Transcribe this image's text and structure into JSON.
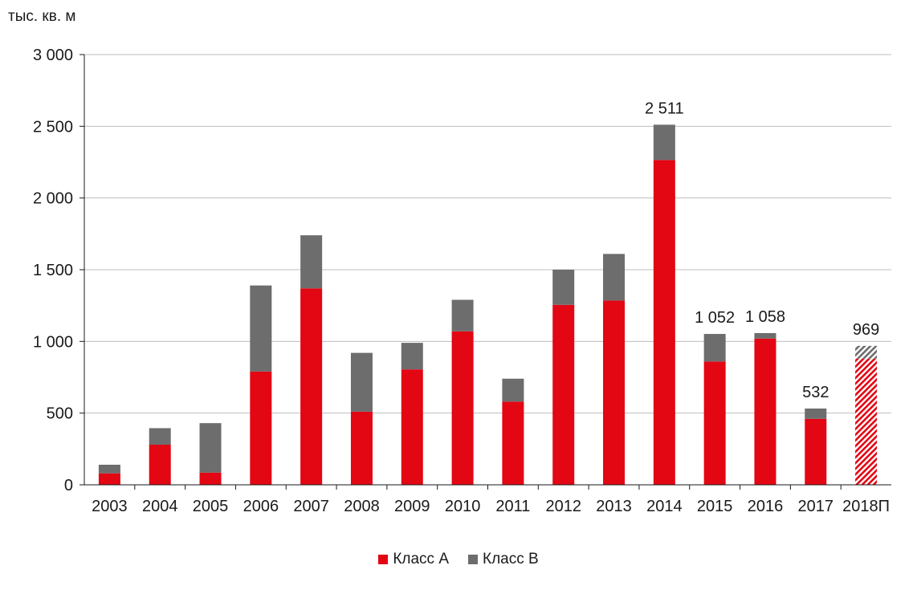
{
  "chart_data": {
    "type": "bar",
    "stacked": true,
    "unit_label": "тыс. кв. м",
    "categories": [
      "2003",
      "2004",
      "2005",
      "2006",
      "2007",
      "2008",
      "2009",
      "2010",
      "2011",
      "2012",
      "2013",
      "2014",
      "2015",
      "2016",
      "2017",
      "2018П"
    ],
    "series": [
      {
        "name": "Класс А",
        "color": "#e30613",
        "values": [
          80,
          280,
          85,
          790,
          1370,
          510,
          805,
          1070,
          580,
          1255,
          1285,
          2265,
          860,
          1020,
          460,
          880
        ]
      },
      {
        "name": "Класс В",
        "color": "#6d6d6e",
        "values": [
          60,
          115,
          345,
          600,
          370,
          410,
          185,
          220,
          160,
          245,
          325,
          246,
          192,
          38,
          72,
          89
        ]
      }
    ],
    "totals_labels": [
      {
        "category": "2014",
        "text": "2 511"
      },
      {
        "category": "2015",
        "text": "1 052"
      },
      {
        "category": "2016",
        "text": "1 058"
      },
      {
        "category": "2017",
        "text": "532"
      },
      {
        "category": "2018П",
        "text": "969"
      }
    ],
    "forecast_category": "2018П",
    "ylim": [
      0,
      3000
    ],
    "yticks": [
      0,
      500,
      1000,
      1500,
      2000,
      2500,
      3000
    ],
    "ytick_labels": [
      "0",
      "500",
      "1 000",
      "1 500",
      "2 000",
      "2 500",
      "3 000"
    ],
    "grid": true,
    "legend_position": "bottom-center"
  }
}
